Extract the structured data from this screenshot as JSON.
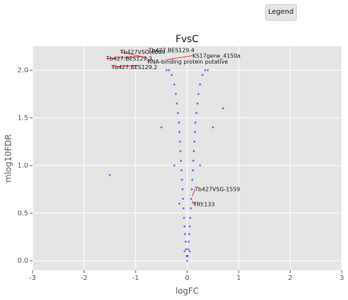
{
  "legend": {
    "label": "Legend"
  },
  "chart_data": {
    "type": "scatter",
    "title": "FvsC",
    "xlabel": "logFC",
    "ylabel": "mlog10FDR",
    "xlim": [
      -3,
      3
    ],
    "ylim": [
      -0.1,
      2.25
    ],
    "xticks": [
      "-3",
      "-2",
      "-1",
      "0",
      "1",
      "2",
      "3"
    ],
    "yticks": [
      "0.0",
      "0.5",
      "1.0",
      "1.5",
      "2.0"
    ],
    "grid": true,
    "legend_position": "top-right",
    "colors": {
      "background": "#e5e5e5",
      "grid": "#ffffff",
      "points": "#0000ff",
      "annotation_line": "#ff0000"
    },
    "series": [
      {
        "x": [
          0.0,
          0.01,
          -0.01,
          0.02,
          -0.02,
          0.03,
          -0.03,
          0.04,
          -0.04,
          0.05,
          -0.05,
          0.06,
          -0.06,
          0.07,
          -0.07,
          0.08,
          -0.08,
          0.09,
          -0.09,
          0.1,
          -0.1,
          0.11,
          -0.11,
          0.12,
          -0.12,
          0.13,
          -0.13,
          0.14,
          -0.14,
          0.15,
          -0.15,
          0.16,
          -0.16,
          0.18,
          -0.18,
          0.2,
          -0.2,
          0.22,
          -0.22,
          0.25,
          -0.25,
          0.3,
          -0.3,
          0.35,
          -0.35,
          0.4,
          -0.4,
          0.05,
          -0.05,
          0.15,
          -0.15,
          0.25,
          -0.25,
          0.5,
          -0.5,
          0.7,
          -1.5
        ],
        "y": [
          0.0,
          0.05,
          0.05,
          0.12,
          0.12,
          0.2,
          0.2,
          0.28,
          0.28,
          0.36,
          0.36,
          0.45,
          0.45,
          0.55,
          0.55,
          0.65,
          0.65,
          0.75,
          0.75,
          0.85,
          0.85,
          0.95,
          0.95,
          1.05,
          1.05,
          1.15,
          1.15,
          1.25,
          1.25,
          1.35,
          1.35,
          1.45,
          1.45,
          1.55,
          1.55,
          1.65,
          1.65,
          1.75,
          1.75,
          1.85,
          1.85,
          1.95,
          1.95,
          2.0,
          2.0,
          2.0,
          2.0,
          0.1,
          0.1,
          0.6,
          0.6,
          1.0,
          1.0,
          1.4,
          1.4,
          1.6,
          0.9
        ]
      }
    ],
    "annotations": [
      {
        "text": "Tb427.BES129.4",
        "x": -0.75,
        "y": 2.19,
        "px": -0.7,
        "py": 2.16
      },
      {
        "text": "Tb427VSG-6609",
        "x": -1.3,
        "y": 2.17,
        "px": -0.78,
        "py": 2.13
      },
      {
        "text": "KS17gene_4150a",
        "x": 0.1,
        "y": 2.13,
        "px": -0.4,
        "py": 2.11
      },
      {
        "text": "Tb427.BES129.3",
        "x": -1.57,
        "y": 2.1,
        "px": -0.9,
        "py": 2.14
      },
      {
        "text": "RNA-binding protein  putative",
        "x": -0.77,
        "y": 2.07,
        "px": -0.76,
        "py": 2.12
      },
      {
        "text": "Tb427.BES129.2",
        "x": -1.47,
        "y": 2.01,
        "px": -0.95,
        "py": 2.05
      },
      {
        "text": "Tb427VSG-1559",
        "x": 0.15,
        "y": 0.73,
        "px": 0.1,
        "py": 0.68
      },
      {
        "text": "TRY.133",
        "x": 0.12,
        "y": 0.57,
        "px": 0.1,
        "py": 0.63
      }
    ]
  }
}
